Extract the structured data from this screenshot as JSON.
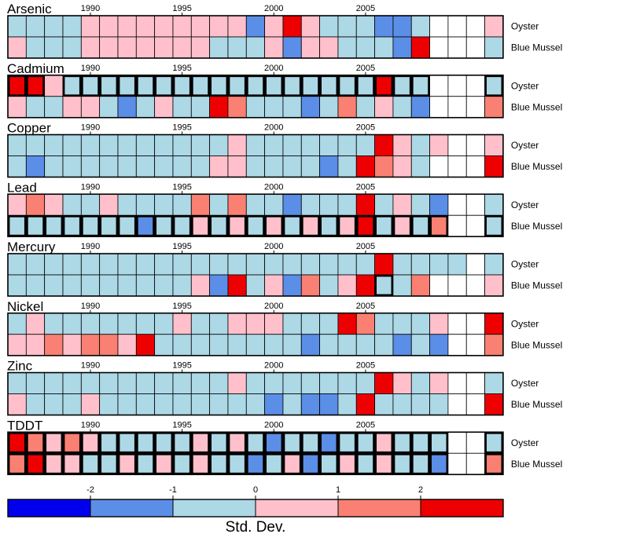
{
  "chart_data": {
    "type": "heatmap",
    "x_start_year": 1986,
    "x_ticks": [
      1990,
      1995,
      2000,
      2005
    ],
    "row_labels": [
      "Oyster",
      "Blue Mussel"
    ],
    "value_scale": "std_dev_bins",
    "bin_edges": [
      -2,
      -1,
      0,
      1,
      2
    ],
    "colorbar": {
      "colors": [
        "#0000ee",
        "#5b8ee6",
        "#add8e6",
        "#ffc0cb",
        "#f98072",
        "#ee0000"
      ],
      "tick_labels": [
        "-2",
        "-1",
        "0",
        "1",
        "2"
      ],
      "label": "Std. Dev."
    },
    "no_data_color": "#ffffff",
    "panels": [
      {
        "name": "Arsenic",
        "rows": [
          {
            "label": "Oyster",
            "values": [
              0,
              0,
              0,
              0,
              1,
              1,
              1,
              1,
              1,
              1,
              1,
              1,
              1,
              -1,
              1,
              2,
              1,
              0,
              0,
              0,
              -1,
              -1,
              0,
              null,
              null,
              null,
              1
            ],
            "bold": []
          },
          {
            "label": "Blue Mussel",
            "values": [
              1,
              0,
              0,
              0,
              1,
              1,
              1,
              1,
              1,
              1,
              1,
              0,
              0,
              0,
              1,
              -1,
              1,
              1,
              0,
              0,
              0,
              -1,
              2,
              null,
              null,
              null,
              0
            ],
            "bold": []
          }
        ]
      },
      {
        "name": "Cadmium",
        "rows": [
          {
            "label": "Oyster",
            "values": [
              2,
              2,
              1,
              0,
              0,
              0,
              0,
              0,
              0,
              0,
              0,
              0,
              0,
              0,
              0,
              0,
              0,
              0,
              0,
              0,
              2,
              0,
              0,
              null,
              null,
              null,
              0
            ],
            "bold": [
              0,
              1,
              3,
              4,
              5,
              6,
              7,
              8,
              9,
              10,
              11,
              12,
              13,
              14,
              15,
              16,
              17,
              18,
              19,
              20,
              21,
              22,
              26
            ]
          },
          {
            "label": "Blue Mussel",
            "values": [
              1,
              0,
              0,
              1,
              1,
              0,
              -1,
              0,
              1,
              0,
              0,
              2,
              1.5,
              0,
              0,
              0,
              -1,
              0,
              1.5,
              0,
              1,
              0,
              -1,
              null,
              null,
              null,
              1.5
            ],
            "bold": []
          }
        ]
      },
      {
        "name": "Copper",
        "rows": [
          {
            "label": "Oyster",
            "values": [
              0,
              0,
              0,
              0,
              0,
              0,
              0,
              0,
              0,
              0,
              0,
              0,
              1,
              0,
              0,
              0,
              0,
              0,
              0,
              0,
              2,
              1,
              0,
              1,
              null,
              null,
              1
            ],
            "bold": []
          },
          {
            "label": "Blue Mussel",
            "values": [
              0,
              -1,
              0,
              0,
              0,
              0,
              0,
              0,
              0,
              0,
              0,
              1,
              1,
              0,
              0,
              0,
              0,
              -1,
              0,
              2,
              1.5,
              1,
              0,
              null,
              null,
              null,
              2
            ],
            "bold": []
          }
        ]
      },
      {
        "name": "Lead",
        "rows": [
          {
            "label": "Oyster",
            "values": [
              1,
              1.5,
              1,
              0,
              0,
              1,
              0,
              0,
              0,
              0,
              1.5,
              0,
              1.5,
              0,
              0,
              -1,
              0,
              0,
              0,
              2,
              0,
              1,
              0,
              -1,
              null,
              null,
              0
            ],
            "bold": []
          },
          {
            "label": "Blue Mussel",
            "values": [
              0,
              0,
              0,
              0,
              0,
              0,
              0,
              -1,
              0,
              0,
              1,
              0,
              1,
              0,
              1,
              0,
              1,
              0,
              1,
              2,
              0,
              1,
              0,
              1.5,
              null,
              null,
              0
            ],
            "bold": [
              0,
              1,
              2,
              3,
              4,
              5,
              6,
              7,
              8,
              9,
              10,
              11,
              12,
              13,
              14,
              15,
              16,
              17,
              18,
              19,
              20,
              21,
              22,
              23,
              26
            ]
          }
        ]
      },
      {
        "name": "Mercury",
        "rows": [
          {
            "label": "Oyster",
            "values": [
              0,
              0,
              0,
              0,
              0,
              0,
              0,
              0,
              0,
              0,
              0,
              0,
              0,
              0,
              0,
              0,
              0,
              0,
              0,
              0,
              2,
              0,
              0,
              0,
              0,
              null,
              0
            ],
            "bold": []
          },
          {
            "label": "Blue Mussel",
            "values": [
              0,
              0,
              0,
              0,
              0,
              0,
              0,
              0,
              0,
              0,
              1,
              -1,
              2,
              0,
              1,
              -1,
              1.5,
              0,
              1,
              2,
              0,
              0,
              1.5,
              null,
              null,
              null,
              1
            ],
            "bold": [
              20
            ]
          }
        ]
      },
      {
        "name": "Nickel",
        "rows": [
          {
            "label": "Oyster",
            "values": [
              0,
              1,
              0,
              0,
              0,
              0,
              0,
              0,
              0,
              1,
              0,
              0,
              1,
              1,
              1,
              0,
              0,
              0,
              2,
              1.5,
              0,
              0,
              0,
              1,
              null,
              null,
              2
            ],
            "bold": []
          },
          {
            "label": "Blue Mussel",
            "values": [
              1,
              1,
              1.5,
              1,
              1.5,
              1.5,
              1,
              2,
              0,
              0,
              0,
              0,
              0,
              0,
              0,
              0,
              -1,
              0,
              0,
              0,
              0,
              -1,
              0,
              -1,
              null,
              null,
              1.5
            ],
            "bold": []
          }
        ]
      },
      {
        "name": "Zinc",
        "rows": [
          {
            "label": "Oyster",
            "values": [
              0,
              0,
              0,
              0,
              0,
              0,
              0,
              0,
              0,
              0,
              0,
              0,
              1,
              0,
              0,
              0,
              0,
              0,
              0,
              0,
              2,
              1,
              0,
              1,
              null,
              null,
              0
            ],
            "bold": []
          },
          {
            "label": "Blue Mussel",
            "values": [
              1,
              0,
              0,
              0,
              1,
              0,
              0,
              0,
              0,
              0,
              0,
              0,
              0,
              0,
              -1,
              0,
              -1,
              -1,
              0,
              2,
              0,
              0,
              0,
              0,
              null,
              null,
              2
            ],
            "bold": []
          }
        ]
      },
      {
        "name": "TDDT",
        "rows": [
          {
            "label": "Oyster",
            "values": [
              2,
              1.5,
              1,
              1.5,
              1,
              0,
              0,
              0,
              0,
              0,
              1,
              0,
              1,
              0,
              -1,
              0,
              0,
              -1,
              0,
              0,
              1,
              0,
              0,
              0,
              null,
              null,
              0
            ],
            "bold": [
              0,
              1,
              2,
              3,
              4,
              5,
              6,
              7,
              8,
              9,
              10,
              11,
              12,
              13,
              14,
              15,
              16,
              17,
              18,
              19,
              20,
              21,
              22,
              23,
              26
            ]
          },
          {
            "label": "Blue Mussel",
            "values": [
              1.5,
              2,
              1,
              1,
              0,
              0,
              1,
              0,
              1,
              0,
              1,
              0,
              0,
              -1,
              0,
              1,
              -1,
              0,
              1,
              0,
              1,
              0,
              0,
              -1,
              null,
              null,
              1.5
            ],
            "bold": [
              0,
              1,
              2,
              3,
              4,
              5,
              6,
              7,
              8,
              9,
              10,
              11,
              12,
              13,
              14,
              15,
              16,
              17,
              18,
              19,
              20,
              21,
              22,
              23,
              26
            ]
          }
        ]
      }
    ]
  }
}
